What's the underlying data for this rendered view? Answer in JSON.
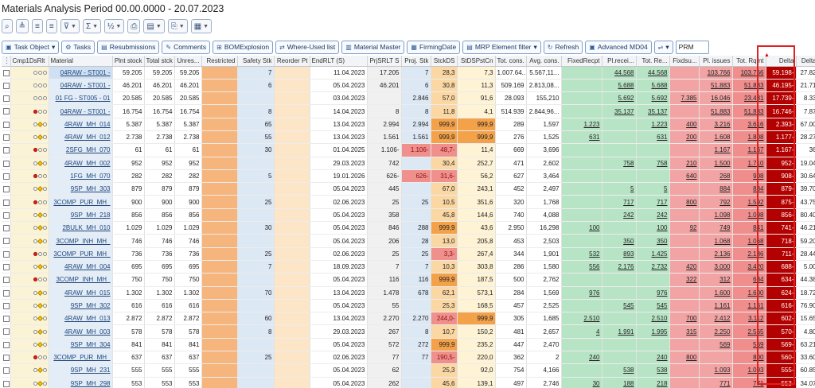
{
  "window": {
    "title": "Materials Analysis Period 00.00.0000 - 20.07.2023"
  },
  "toolbar_icons": [
    {
      "name": "find-icon",
      "glyph": "⌕",
      "dropdown": false
    },
    {
      "name": "align-top-icon",
      "glyph": "≜",
      "dropdown": false
    },
    {
      "name": "sort-ascending-icon",
      "glyph": "≡",
      "dropdown": false
    },
    {
      "name": "sort-descending-icon",
      "glyph": "≡",
      "dropdown": false
    },
    {
      "name": "filter-icon",
      "glyph": "⊽",
      "dropdown": true
    },
    {
      "name": "sum-icon",
      "glyph": "Σ",
      "dropdown": true
    },
    {
      "name": "subtotal-icon",
      "glyph": "½",
      "dropdown": true
    },
    {
      "name": "print-icon",
      "glyph": "⎙",
      "dropdown": false
    },
    {
      "name": "views-icon",
      "glyph": "▤",
      "dropdown": true
    },
    {
      "name": "export-icon",
      "glyph": "⎘",
      "dropdown": true
    },
    {
      "name": "layout-icon",
      "glyph": "▦",
      "dropdown": true
    }
  ],
  "toolbar": {
    "task_object": "Task Object",
    "tasks": "Tasks",
    "resubmissions": "Resubmissions",
    "comments": "Comments",
    "bom_explosion": "BOMExplosion",
    "where_used": "Where-Used list",
    "material_master": "Material Master",
    "firming_date": "FirmingDate",
    "mrp_filter": "MRP Element filter",
    "refresh": "Refresh",
    "advanced_md04": "Advanced MD04",
    "search_value": "PRM"
  },
  "columns": [
    "",
    "Cmp1DsRlt",
    "Material",
    "Plnt stock",
    "Total stck",
    "Unres...",
    "Restricted",
    "Safety Stk",
    "Reorder Pt",
    "EndRLT (S)",
    "PrjSRLT S",
    "Proj. Stk",
    "StckDS",
    "StDSPstCn",
    "Tot. cons.",
    "Avg. cons.",
    "FixedRecpt",
    "Pl.recei...",
    "Tot. Re...",
    "Fixdsu...",
    "Pl. issues",
    "Tot. Rqmt",
    "Delta",
    "Delta"
  ],
  "rows": [
    {
      "l": "nnn",
      "mat": "04RAW - ST001 -",
      "pl": "59.205",
      "tot": "59.205",
      "unr": "59.205",
      "saf": "7",
      "ro": "",
      "end": "11.04.2023",
      "prj": "17.205",
      "ps": "7",
      "sds": "28,3",
      "sdp": "7,3",
      "tc": "1.007.64...",
      "ac": "5.567,11...",
      "fr": "",
      "pr": "44.568",
      "tr": "44.568",
      "fi": "",
      "pi": "103.766",
      "tq": "103.766",
      "d": "59.198-",
      "d2": "27.82"
    },
    {
      "l": "nnn",
      "mat": "04RAW - ST001 -",
      "pl": "46.201",
      "tot": "46.201",
      "unr": "46.201",
      "saf": "6",
      "ro": "",
      "end": "05.04.2023",
      "prj": "46.201",
      "ps": "6",
      "sds": "30,8",
      "sdp": "11,3",
      "tc": "509.169",
      "ac": "2.813,08...",
      "fr": "",
      "pr": "5.688",
      "tr": "5.688",
      "fi": "",
      "pi": "51.883",
      "tq": "51.883",
      "d": "46.195-",
      "d2": "21.71"
    },
    {
      "l": "nnn",
      "mat": "01 FG - ST005 - 01",
      "pl": "20.585",
      "tot": "20.585",
      "unr": "20.585",
      "saf": "",
      "ro": "",
      "end": "03.04.2023",
      "prj": "",
      "ps": "2.846",
      "sds": "57,0",
      "sdp": "91,6",
      "tc": "28.093",
      "ac": "155,210",
      "fr": "",
      "pr": "5.692",
      "tr": "5.692",
      "fi": "7.385",
      "pi": "16.046",
      "tq": "23.431",
      "d": "17.739-",
      "d2": "8.33"
    },
    {
      "l": "rnn",
      "mat": "04RAW - ST001 -",
      "pl": "16.754",
      "tot": "16.754",
      "unr": "16.754",
      "saf": "8",
      "ro": "",
      "end": "14.04.2023",
      "prj": "8",
      "ps": "8",
      "sds": "11,8",
      "sdp": "4,1",
      "tc": "514.939",
      "ac": "2.844,96...",
      "fr": "",
      "pr": "35.137",
      "tr": "35.137",
      "fi": "",
      "pi": "51.883",
      "tq": "51.883",
      "d": "16.746-",
      "d2": "7.87"
    },
    {
      "l": "nyn",
      "mat": "4RAW_MH_014",
      "pl": "5.387",
      "tot": "5.387",
      "unr": "5.387",
      "saf": "65",
      "ro": "",
      "end": "13.04.2023",
      "prj": "2.994",
      "ps": "2.994",
      "sds": "999,9",
      "sdp": "999,9",
      "tc": "289",
      "ac": "1,597",
      "fr": "1.223",
      "pr": "",
      "tr": "1.223",
      "fi": "400",
      "pi": "3.216",
      "tq": "3.616",
      "d": "2.393-",
      "d2": "67.00"
    },
    {
      "l": "nyn",
      "mat": "4RAW_MH_012",
      "pl": "2.738",
      "tot": "2.738",
      "unr": "2.738",
      "saf": "55",
      "ro": "",
      "end": "13.04.2023",
      "prj": "1.561",
      "ps": "1.561",
      "sds": "999,9",
      "sdp": "999,9",
      "tc": "276",
      "ac": "1,525",
      "fr": "631",
      "pr": "",
      "tr": "631",
      "fi": "200",
      "pi": "1.608",
      "tq": "1.808",
      "d": "1.177-",
      "d2": "28.27"
    },
    {
      "l": "rnn",
      "mat": "2SFG_MH_070",
      "pl": "61",
      "tot": "61",
      "unr": "61",
      "saf": "30",
      "ro": "",
      "end": "01.04.2025",
      "prj": "1.106-",
      "ps": "1.106-",
      "sds": "48,7-",
      "sdp": "11,4",
      "tc": "669",
      "ac": "3,696",
      "fr": "",
      "pr": "",
      "tr": "",
      "fi": "",
      "pi": "1.167",
      "tq": "1.167",
      "d": "1.167-",
      "d2": "36"
    },
    {
      "l": "nyn",
      "mat": "4RAW_MH_002",
      "pl": "952",
      "tot": "952",
      "unr": "952",
      "saf": "",
      "ro": "",
      "end": "29.03.2023",
      "prj": "742",
      "ps": "",
      "sds": "30,4",
      "sdp": "252,7",
      "tc": "471",
      "ac": "2,602",
      "fr": "",
      "pr": "758",
      "tr": "758",
      "fi": "210",
      "pi": "1.500",
      "tq": "1.710",
      "d": "952-",
      "d2": "19.04"
    },
    {
      "l": "rnn",
      "mat": "1FG_MH_070",
      "pl": "282",
      "tot": "282",
      "unr": "282",
      "saf": "5",
      "ro": "",
      "end": "19.01.2026",
      "prj": "626-",
      "ps": "626-",
      "sds": "31,6-",
      "sdp": "56,2",
      "tc": "627",
      "ac": "3,464",
      "fr": "",
      "pr": "",
      "tr": "",
      "fi": "640",
      "pi": "268",
      "tq": "908",
      "d": "908-",
      "d2": "30.64"
    },
    {
      "l": "nyn",
      "mat": "9SP_MH_303",
      "pl": "879",
      "tot": "879",
      "unr": "879",
      "saf": "",
      "ro": "",
      "end": "05.04.2023",
      "prj": "445",
      "ps": "",
      "sds": "67,0",
      "sdp": "243,1",
      "tc": "452",
      "ac": "2,497",
      "fr": "",
      "pr": "5",
      "tr": "5",
      "fi": "",
      "pi": "884",
      "tq": "884",
      "d": "879-",
      "d2": "39.70"
    },
    {
      "l": "rnn",
      "mat": "3COMP_PUR_MH_",
      "pl": "900",
      "tot": "900",
      "unr": "900",
      "saf": "25",
      "ro": "",
      "end": "02.06.2023",
      "prj": "25",
      "ps": "25",
      "sds": "10,5",
      "sdp": "351,6",
      "tc": "320",
      "ac": "1,768",
      "fr": "",
      "pr": "717",
      "tr": "717",
      "fi": "800",
      "pi": "792",
      "tq": "1.592",
      "d": "875-",
      "d2": "43.75"
    },
    {
      "l": "nyn",
      "mat": "9SP_MH_218",
      "pl": "856",
      "tot": "856",
      "unr": "856",
      "saf": "",
      "ro": "",
      "end": "05.04.2023",
      "prj": "358",
      "ps": "",
      "sds": "45,8",
      "sdp": "144,6",
      "tc": "740",
      "ac": "4,088",
      "fr": "",
      "pr": "242",
      "tr": "242",
      "fi": "",
      "pi": "1.098",
      "tq": "1.098",
      "d": "856-",
      "d2": "80.40"
    },
    {
      "l": "nyn",
      "mat": "2BULK_MH_010",
      "pl": "1.029",
      "tot": "1.029",
      "unr": "1.029",
      "saf": "30",
      "ro": "",
      "end": "05.04.2023",
      "prj": "846",
      "ps": "288",
      "sds": "999,9",
      "sdp": "43,6",
      "tc": "2.950",
      "ac": "16,298",
      "fr": "100",
      "pr": "",
      "tr": "100",
      "fi": "92",
      "pi": "749",
      "tq": "841",
      "d": "741-",
      "d2": "46.21"
    },
    {
      "l": "nyn",
      "mat": "3COMP_INH_MH_",
      "pl": "746",
      "tot": "746",
      "unr": "746",
      "saf": "",
      "ro": "",
      "end": "05.04.2023",
      "prj": "206",
      "ps": "28",
      "sds": "13,0",
      "sdp": "205,8",
      "tc": "453",
      "ac": "2,503",
      "fr": "",
      "pr": "350",
      "tr": "350",
      "fi": "",
      "pi": "1.068",
      "tq": "1.068",
      "d": "718-",
      "d2": "59.20"
    },
    {
      "l": "rnn",
      "mat": "3COMP_PUR_MH_",
      "pl": "736",
      "tot": "736",
      "unr": "736",
      "saf": "25",
      "ro": "",
      "end": "02.06.2023",
      "prj": "25",
      "ps": "25",
      "sds": "3,3-",
      "sdp": "267,4",
      "tc": "344",
      "ac": "1,901",
      "fr": "532",
      "pr": "893",
      "tr": "1.425",
      "fi": "",
      "pi": "2.136",
      "tq": "2.136",
      "d": "711-",
      "d2": "28.44"
    },
    {
      "l": "nyn",
      "mat": "4RAW_MH_004",
      "pl": "695",
      "tot": "695",
      "unr": "695",
      "saf": "7",
      "ro": "",
      "end": "18.09.2023",
      "prj": "7",
      "ps": "7",
      "sds": "10,3",
      "sdp": "303,8",
      "tc": "286",
      "ac": "1,580",
      "fr": "556",
      "pr": "2.176",
      "tr": "2.732",
      "fi": "420",
      "pi": "3.000",
      "tq": "3.420",
      "d": "688-",
      "d2": "5.00"
    },
    {
      "l": "rnn",
      "mat": "3COMP_INH_MH_",
      "pl": "750",
      "tot": "750",
      "unr": "750",
      "saf": "",
      "ro": "",
      "end": "05.04.2023",
      "prj": "116",
      "ps": "116",
      "sds": "999,9",
      "sdp": "187,5",
      "tc": "500",
      "ac": "2,762",
      "fr": "",
      "pr": "",
      "tr": "",
      "fi": "322",
      "pi": "312",
      "tq": "634",
      "d": "634-",
      "d2": "44.38"
    },
    {
      "l": "nyn",
      "mat": "4RAW_MH_015",
      "pl": "1.302",
      "tot": "1.302",
      "unr": "1.302",
      "saf": "70",
      "ro": "",
      "end": "13.04.2023",
      "prj": "1.478",
      "ps": "678",
      "sds": "62,1",
      "sdp": "573,1",
      "tc": "284",
      "ac": "1,569",
      "fr": "976",
      "pr": "",
      "tr": "976",
      "fi": "",
      "pi": "1.600",
      "tq": "1.600",
      "d": "624-",
      "d2": "18.72"
    },
    {
      "l": "nyn",
      "mat": "9SP_MH_302",
      "pl": "616",
      "tot": "616",
      "unr": "616",
      "saf": "",
      "ro": "",
      "end": "05.04.2023",
      "prj": "55",
      "ps": "",
      "sds": "25,3",
      "sdp": "168,5",
      "tc": "457",
      "ac": "2,525",
      "fr": "",
      "pr": "545",
      "tr": "545",
      "fi": "",
      "pi": "1.161",
      "tq": "1.161",
      "d": "616-",
      "d2": "76.90"
    },
    {
      "l": "nyn",
      "mat": "4RAW_MH_013",
      "pl": "2.872",
      "tot": "2.872",
      "unr": "2.872",
      "saf": "60",
      "ro": "",
      "end": "13.04.2023",
      "prj": "2.270",
      "ps": "2.270",
      "sds": "244,0-",
      "sdp": "999,9",
      "tc": "305",
      "ac": "1,685",
      "fr": "2.510",
      "pr": "",
      "tr": "2.510",
      "fi": "700",
      "pi": "2.412",
      "tq": "3.112",
      "d": "602-",
      "d2": "15.65"
    },
    {
      "l": "nyn",
      "mat": "4RAW_MH_003",
      "pl": "578",
      "tot": "578",
      "unr": "578",
      "saf": "8",
      "ro": "",
      "end": "29.03.2023",
      "prj": "267",
      "ps": "8",
      "sds": "10,7",
      "sdp": "150,2",
      "tc": "481",
      "ac": "2,657",
      "fr": "4",
      "pr": "1.991",
      "tr": "1.995",
      "fi": "315",
      "pi": "2.250",
      "tq": "2.565",
      "d": "570-",
      "d2": "4.80"
    },
    {
      "l": "nyn",
      "mat": "9SP_MH_304",
      "pl": "841",
      "tot": "841",
      "unr": "841",
      "saf": "",
      "ro": "",
      "end": "05.04.2023",
      "prj": "572",
      "ps": "272",
      "sds": "999,9",
      "sdp": "235,2",
      "tc": "447",
      "ac": "2,470",
      "fr": "",
      "pr": "",
      "tr": "",
      "fi": "",
      "pi": "569",
      "tq": "569",
      "d": "569-",
      "d2": "63.21"
    },
    {
      "l": "rnn",
      "mat": "3COMP_PUR_MH_",
      "pl": "637",
      "tot": "637",
      "unr": "637",
      "saf": "25",
      "ro": "",
      "end": "02.06.2023",
      "prj": "77",
      "ps": "77",
      "sds": "190,5-",
      "sdp": "220,0",
      "tc": "362",
      "ac": "2",
      "fr": "240",
      "pr": "",
      "tr": "240",
      "fi": "800",
      "pi": "",
      "tq": "800",
      "d": "560-",
      "d2": "33.60"
    },
    {
      "l": "nyn",
      "mat": "9SP_MH_231",
      "pl": "555",
      "tot": "555",
      "unr": "555",
      "saf": "",
      "ro": "",
      "end": "05.04.2023",
      "prj": "62",
      "ps": "",
      "sds": "25,3",
      "sdp": "92,0",
      "tc": "754",
      "ac": "4,166",
      "fr": "",
      "pr": "538",
      "tr": "538",
      "fi": "",
      "pi": "1.093",
      "tq": "1.093",
      "d": "555-",
      "d2": "60.85"
    },
    {
      "l": "nyn",
      "mat": "9SP_MH_298",
      "pl": "553",
      "tot": "553",
      "unr": "553",
      "saf": "",
      "ro": "",
      "end": "05.04.2023",
      "prj": "262",
      "ps": "",
      "sds": "45,6",
      "sdp": "139,1",
      "tc": "497",
      "ac": "2,746",
      "fr": "30",
      "pr": "188",
      "tr": "218",
      "fi": "",
      "pi": "771",
      "tq": "771",
      "d": "553-",
      "d2": "34.07"
    }
  ]
}
